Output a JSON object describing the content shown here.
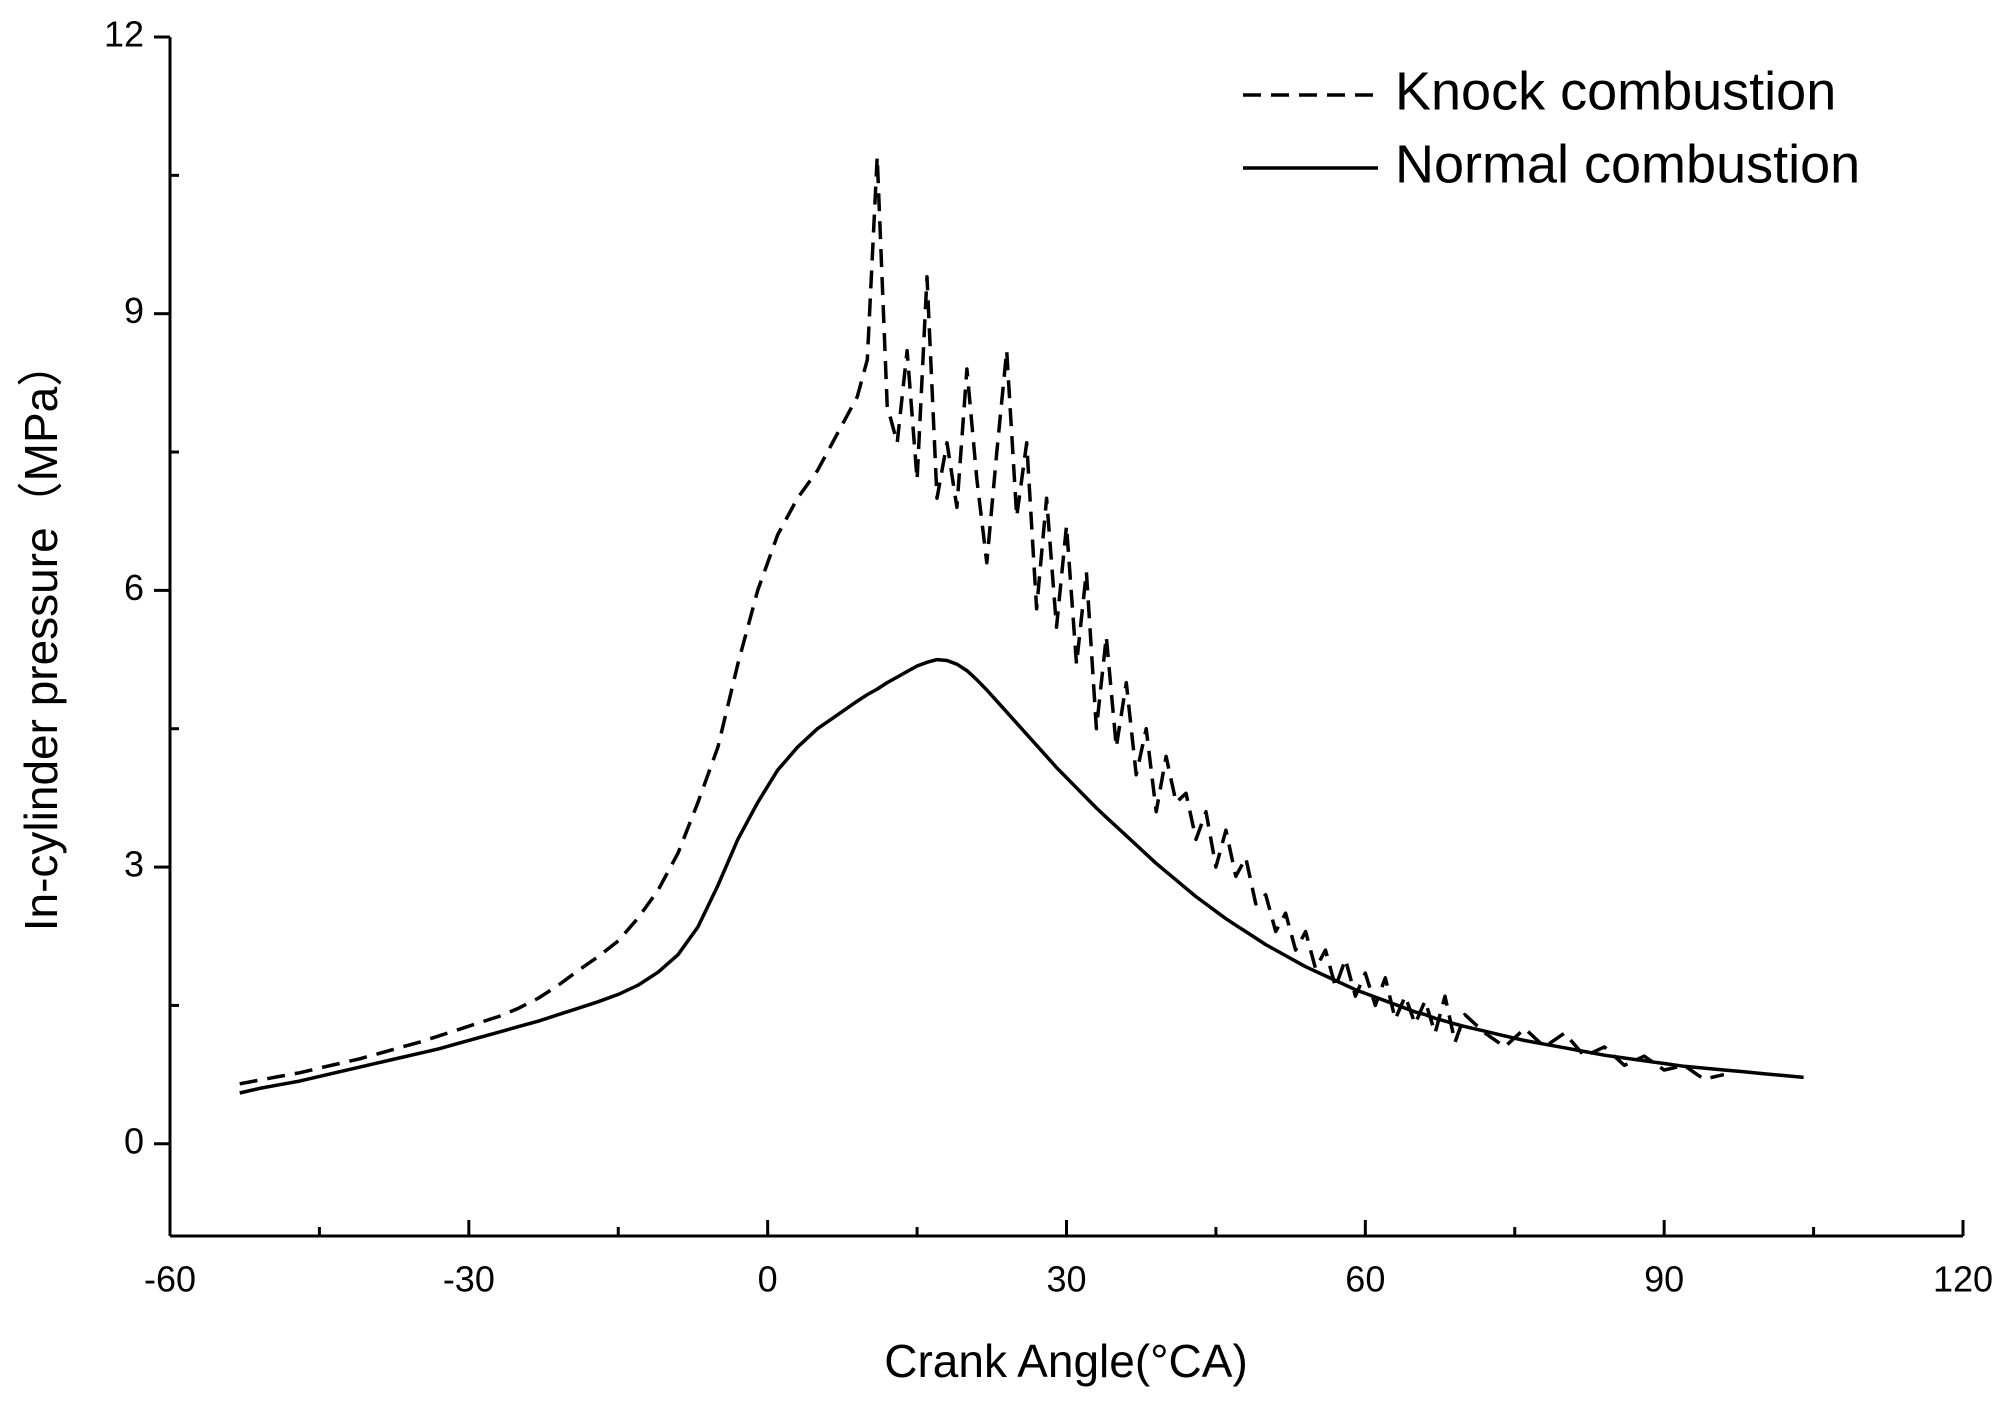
{
  "chart_data": {
    "type": "line",
    "x_label": "Crank Angle(°CA)",
    "y_label": "In-cylinder pressure（MPa）",
    "xlim": [
      -60,
      120
    ],
    "xticks": [
      -60,
      -30,
      0,
      30,
      60,
      90,
      120
    ],
    "ylim": [
      -1,
      12
    ],
    "yticks": [
      0,
      3,
      6,
      9,
      12
    ],
    "legend": "upper right",
    "x": [
      -53,
      -51,
      -49,
      -47,
      -45,
      -43,
      -41,
      -39,
      -37,
      -35,
      -33,
      -31,
      -29,
      -27,
      -25,
      -23,
      -21,
      -19,
      -17,
      -15,
      -13,
      -11,
      -9,
      -7,
      -5,
      -3,
      -1,
      1,
      3,
      5,
      7,
      9,
      10,
      11,
      12,
      13,
      14,
      15,
      16,
      17,
      18,
      19,
      20,
      21,
      22,
      23,
      24,
      25,
      26,
      27,
      28,
      29,
      30,
      31,
      32,
      33,
      34,
      35,
      36,
      37,
      38,
      39,
      40,
      41,
      42,
      43,
      44,
      45,
      46,
      47,
      48,
      49,
      50,
      51,
      52,
      53,
      54,
      55,
      56,
      57,
      58,
      59,
      60,
      61,
      62,
      63,
      64,
      65,
      66,
      67,
      68,
      69,
      70,
      72,
      74,
      76,
      78,
      80,
      82,
      84,
      86,
      88,
      90,
      92,
      94,
      96,
      98,
      100,
      102,
      104
    ],
    "series": [
      {
        "name": "Knock combustion",
        "color": "#000000",
        "line_style": "dashed",
        "values": [
          0.65,
          0.69,
          0.73,
          0.77,
          0.82,
          0.87,
          0.92,
          0.98,
          1.04,
          1.1,
          1.17,
          1.24,
          1.31,
          1.38,
          1.47,
          1.58,
          1.72,
          1.88,
          2.03,
          2.2,
          2.45,
          2.75,
          3.15,
          3.7,
          4.3,
          5.2,
          6.0,
          6.6,
          7.0,
          7.3,
          7.7,
          8.1,
          8.5,
          10.7,
          8.0,
          7.6,
          8.6,
          7.2,
          9.4,
          7.0,
          7.6,
          6.9,
          8.4,
          7.2,
          6.3,
          7.5,
          8.6,
          6.8,
          7.6,
          5.8,
          7.0,
          5.6,
          6.7,
          5.2,
          6.2,
          4.5,
          5.5,
          4.3,
          5.0,
          4.0,
          4.5,
          3.6,
          4.2,
          3.7,
          3.8,
          3.3,
          3.6,
          3.0,
          3.4,
          2.9,
          3.1,
          2.6,
          2.7,
          2.3,
          2.5,
          2.1,
          2.3,
          1.9,
          2.1,
          1.7,
          2.0,
          1.6,
          1.85,
          1.5,
          1.8,
          1.35,
          1.6,
          1.3,
          1.55,
          1.2,
          1.6,
          1.1,
          1.4,
          1.2,
          1.05,
          1.25,
          1.05,
          1.2,
          0.95,
          1.05,
          0.85,
          0.95,
          0.8,
          0.85,
          0.7,
          0.75,
          null,
          null,
          null,
          null
        ]
      },
      {
        "name": "Normal combustion",
        "color": "#000000",
        "line_style": "solid",
        "values": [
          0.55,
          0.6,
          0.64,
          0.68,
          0.73,
          0.78,
          0.83,
          0.88,
          0.93,
          0.98,
          1.03,
          1.09,
          1.15,
          1.21,
          1.27,
          1.33,
          1.4,
          1.47,
          1.54,
          1.62,
          1.72,
          1.86,
          2.05,
          2.35,
          2.8,
          3.3,
          3.7,
          4.05,
          4.3,
          4.5,
          4.65,
          4.8,
          4.87,
          4.93,
          5.0,
          5.06,
          5.12,
          5.18,
          5.22,
          5.25,
          5.24,
          5.2,
          5.13,
          5.03,
          4.92,
          4.8,
          4.68,
          4.56,
          4.44,
          4.32,
          4.2,
          4.08,
          3.97,
          3.86,
          3.75,
          3.64,
          3.54,
          3.44,
          3.34,
          3.24,
          3.14,
          3.04,
          2.95,
          2.86,
          2.77,
          2.68,
          2.6,
          2.52,
          2.44,
          2.37,
          2.3,
          2.23,
          2.16,
          2.1,
          2.04,
          1.98,
          1.92,
          1.87,
          1.82,
          1.77,
          1.72,
          1.67,
          1.63,
          1.59,
          1.55,
          1.51,
          1.47,
          1.43,
          1.4,
          1.36,
          1.33,
          1.3,
          1.27,
          1.22,
          1.17,
          1.12,
          1.08,
          1.04,
          1.0,
          0.96,
          0.93,
          0.9,
          0.87,
          0.84,
          0.82,
          0.8,
          0.78,
          0.76,
          0.74,
          0.72
        ]
      }
    ]
  }
}
